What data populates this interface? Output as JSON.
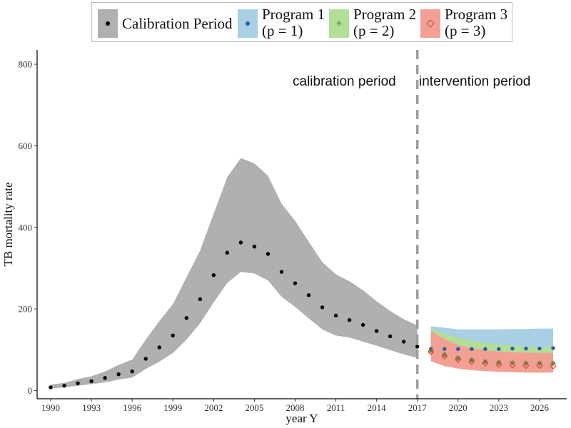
{
  "chart_data": {
    "type": "scatter",
    "xlabel": "year Y",
    "ylabel": "TB mortality rate",
    "xlim": [
      1989,
      2028
    ],
    "ylim": [
      -20,
      835
    ],
    "x_ticks": [
      1990,
      1993,
      1996,
      1999,
      2002,
      2005,
      2008,
      2011,
      2014,
      2017,
      2020,
      2023,
      2026
    ],
    "y_ticks": [
      0,
      200,
      400,
      600,
      800
    ],
    "grid": false,
    "legend_position": "top",
    "divider_x": 2017,
    "region_labels": {
      "left": "calibration period",
      "right": "intervention period"
    },
    "legend": [
      {
        "key": "calibration",
        "label_lines": [
          "Calibration Period"
        ],
        "fill": "#b0b0b0",
        "marker": "dot",
        "marker_color": "#000000"
      },
      {
        "key": "p1",
        "label_lines": [
          "Program 1",
          "(p = 1)"
        ],
        "fill": "#a9cfe5",
        "marker": "dot",
        "marker_color": "#1f5fa8"
      },
      {
        "key": "p2",
        "label_lines": [
          "Program 2",
          "(p = 2)"
        ],
        "fill": "#b3de98",
        "marker": "star",
        "marker_color": "#3c8a2e"
      },
      {
        "key": "p3",
        "label_lines": [
          "Program 3",
          "(p = 3)"
        ],
        "fill": "#f2a093",
        "marker": "diamond",
        "marker_color": "#d9463a"
      }
    ],
    "calibration": {
      "x": [
        1990,
        1991,
        1992,
        1993,
        1994,
        1995,
        1996,
        1997,
        1998,
        1999,
        2000,
        2001,
        2002,
        2003,
        2004,
        2005,
        2006,
        2007,
        2008,
        2009,
        2010,
        2011,
        2012,
        2013,
        2014,
        2015,
        2016,
        2017
      ],
      "y": [
        8,
        12,
        18,
        23,
        31,
        40,
        47,
        78,
        106,
        135,
        178,
        224,
        283,
        338,
        363,
        353,
        335,
        291,
        263,
        234,
        204,
        184,
        173,
        161,
        146,
        133,
        120,
        108
      ],
      "lower": [
        5,
        8,
        12,
        16,
        20,
        27,
        32,
        53,
        71,
        92,
        125,
        165,
        216,
        264,
        291,
        287,
        270,
        230,
        205,
        177,
        150,
        135,
        130,
        120,
        110,
        99,
        89,
        80
      ],
      "upper": [
        15,
        19,
        28,
        35,
        47,
        63,
        76,
        125,
        170,
        212,
        278,
        343,
        433,
        523,
        570,
        557,
        527,
        458,
        416,
        365,
        315,
        285,
        268,
        246,
        219,
        195,
        175,
        160
      ]
    },
    "program1": {
      "x": [
        2018,
        2019,
        2020,
        2021,
        2022,
        2023,
        2024,
        2025,
        2026,
        2027
      ],
      "y": [
        102,
        102,
        102,
        102,
        102,
        102,
        103,
        103,
        103,
        104
      ],
      "lower": [
        103,
        102,
        101,
        101,
        101,
        101,
        102,
        102,
        102,
        102
      ],
      "upper": [
        158,
        154,
        150,
        150,
        150,
        150,
        151,
        151,
        152,
        152
      ]
    },
    "program2": {
      "x": [
        2018,
        2019,
        2020,
        2021,
        2022,
        2023,
        2024,
        2025,
        2026,
        2027
      ],
      "y": [
        98,
        88,
        80,
        75,
        71,
        69,
        68,
        67,
        67,
        67
      ],
      "lower": [
        85,
        75,
        69,
        65,
        62,
        60,
        59,
        58,
        58,
        58
      ],
      "upper": [
        150,
        140,
        130,
        123,
        117,
        113,
        110,
        108,
        107,
        107
      ]
    },
    "program3": {
      "x": [
        2018,
        2019,
        2020,
        2021,
        2022,
        2023,
        2024,
        2025,
        2026,
        2027
      ],
      "y": [
        95,
        84,
        76,
        71,
        67,
        64,
        62,
        61,
        61,
        60
      ],
      "lower": [
        72,
        60,
        54,
        50,
        48,
        46,
        45,
        44,
        44,
        44
      ],
      "upper": [
        146,
        126,
        112,
        104,
        99,
        96,
        94,
        93,
        92,
        92
      ]
    }
  }
}
